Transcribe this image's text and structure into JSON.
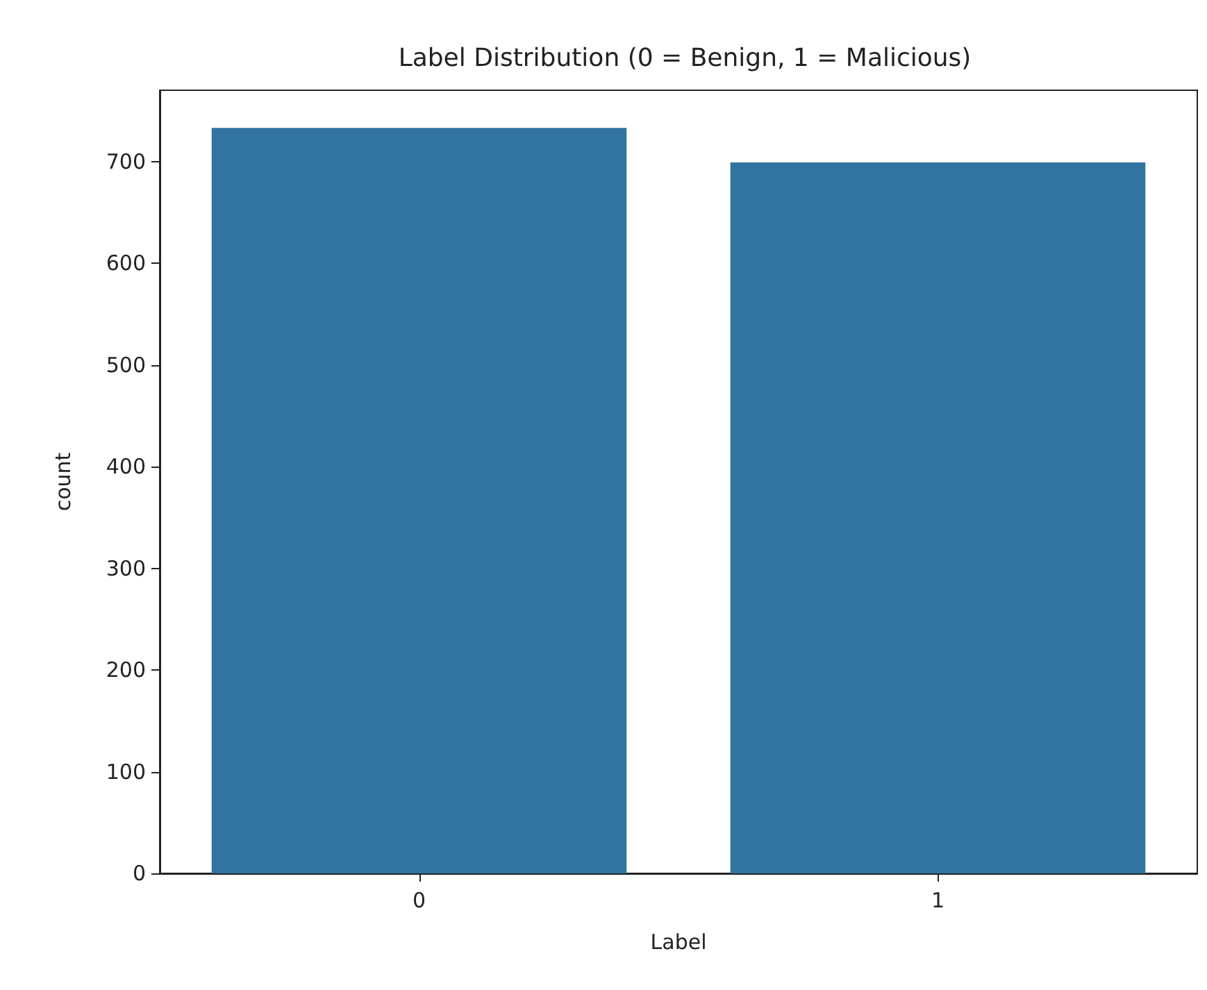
{
  "chart_data": {
    "type": "bar",
    "title": "Label Distribution (0 = Benign, 1 = Malicious)",
    "xlabel": "Label",
    "ylabel": "count",
    "categories": [
      "0",
      "1"
    ],
    "values": [
      733,
      699
    ],
    "color": "#3274a1",
    "ylim": [
      0,
      770
    ],
    "yticks": [
      0,
      100,
      200,
      300,
      400,
      500,
      600,
      700
    ],
    "grid": false
  }
}
